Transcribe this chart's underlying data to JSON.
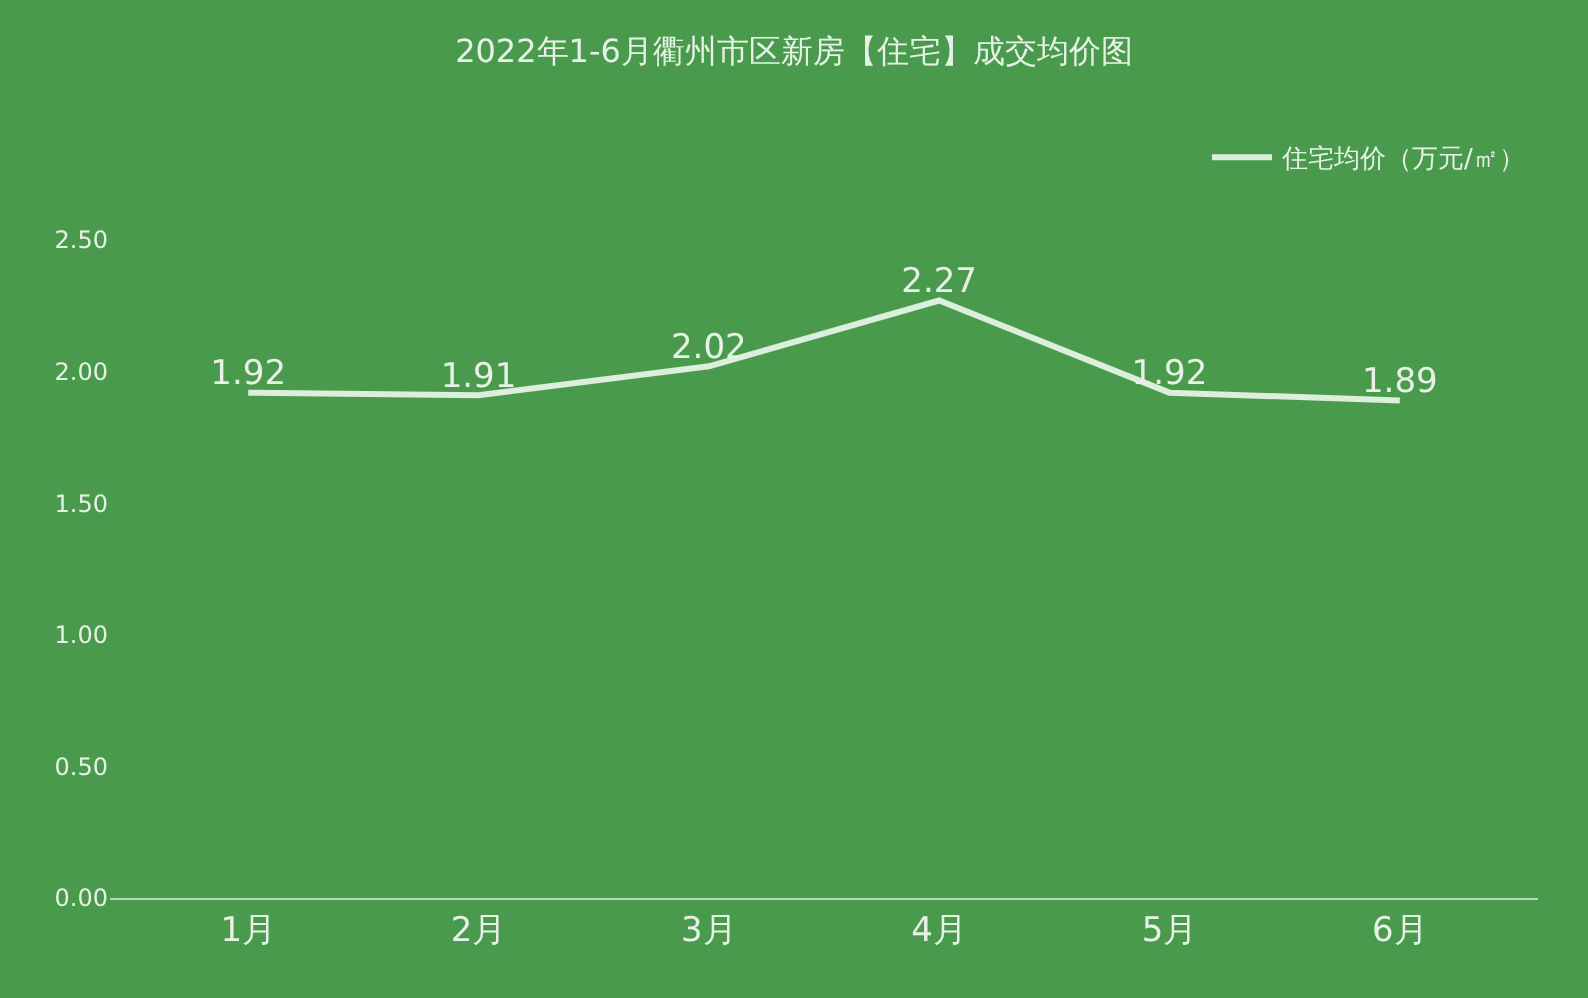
{
  "chart_data": {
    "type": "line",
    "title": "2022年1-6月衢州市区新房【住宅】成交均价图",
    "categories": [
      "1月",
      "2月",
      "3月",
      "4月",
      "5月",
      "6月"
    ],
    "series": [
      {
        "name": "住宅均价（万元/㎡）",
        "color": "#dcefdc",
        "values": [
          1.92,
          1.91,
          2.02,
          2.27,
          1.92,
          1.89
        ]
      }
    ],
    "ylim": [
      0,
      2.5
    ],
    "yticks": [
      {
        "value": 0,
        "label": "0.00"
      },
      {
        "value": 0.5,
        "label": "0.50"
      },
      {
        "value": 1,
        "label": "1.00"
      },
      {
        "value": 1.5,
        "label": "1.50"
      },
      {
        "value": 2,
        "label": "2.00"
      },
      {
        "value": 2.5,
        "label": "2.50"
      }
    ],
    "data_labels": true,
    "legend": "top right",
    "grid": false,
    "marker": "none",
    "line_style": "solid"
  }
}
